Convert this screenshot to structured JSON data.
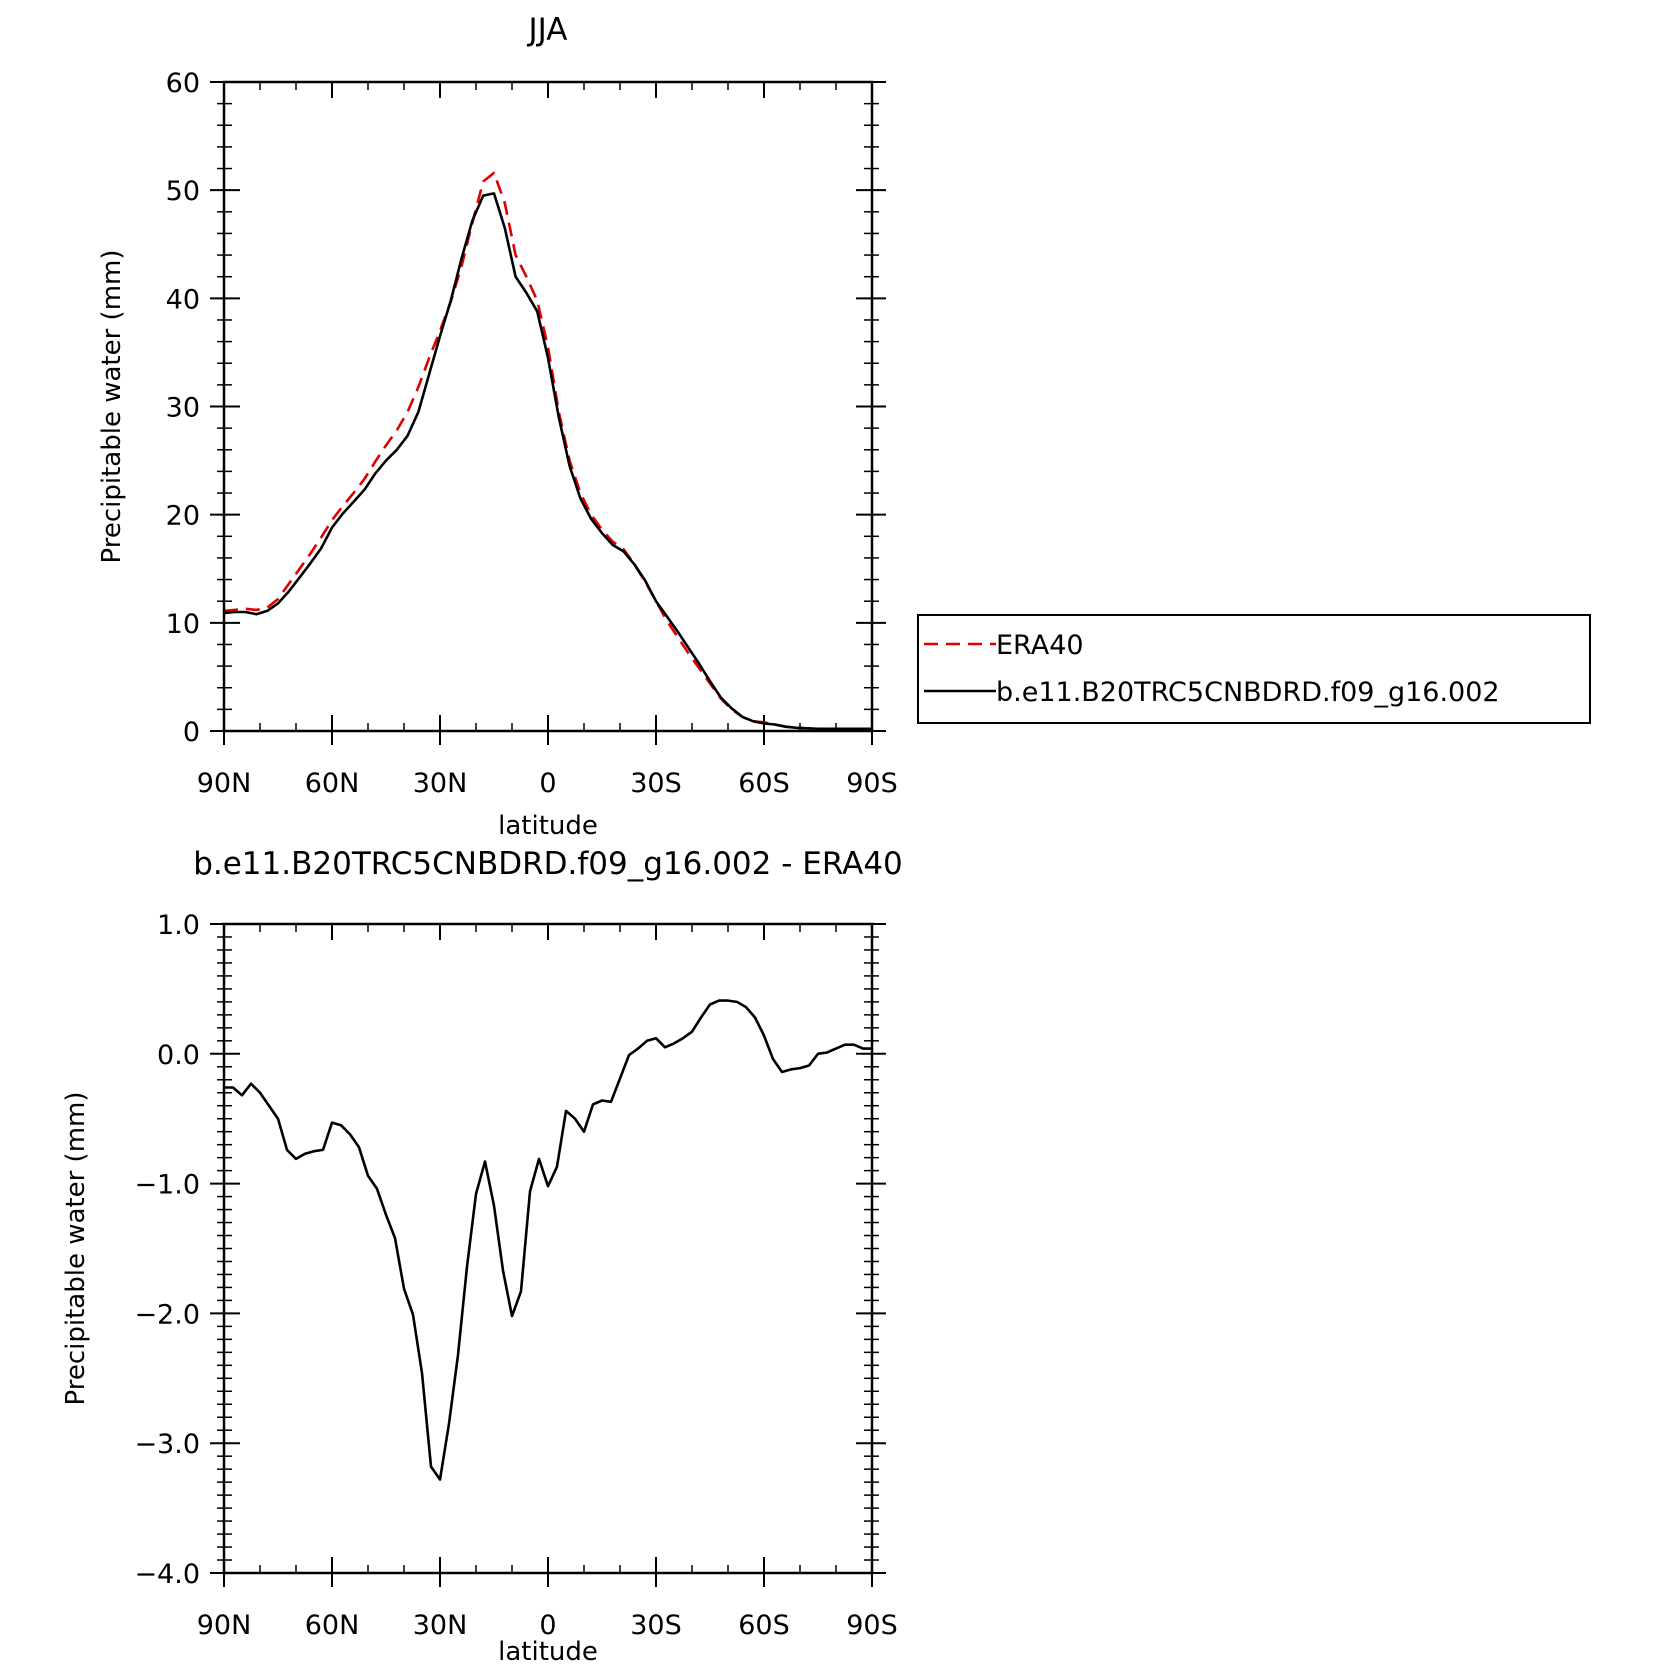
{
  "colors": {
    "model": "#000000",
    "obs": "#e00000",
    "axes": "#000000",
    "background": "#ffffff"
  },
  "chart_data": [
    {
      "type": "line",
      "title": "JJA",
      "xlabel": "latitude",
      "ylabel": "Precipitable water (mm)",
      "xlim": [
        90,
        -90
      ],
      "ylim": [
        0,
        60
      ],
      "x_ticks": [
        90,
        60,
        30,
        0,
        -30,
        -60,
        -90
      ],
      "x_tick_labels": [
        "90N",
        "60N",
        "30N",
        "0",
        "30S",
        "60S",
        "90S"
      ],
      "y_ticks": [
        0,
        10,
        20,
        30,
        40,
        50,
        60
      ],
      "y_tick_labels": [
        "0",
        "10",
        "20",
        "30",
        "40",
        "50",
        "60"
      ],
      "grid": false,
      "legend": {
        "placement": "right",
        "entries": [
          "ERA40",
          "b.e11.B20TRC5CNBDRD.f09_g16.002"
        ]
      },
      "series": [
        {
          "name": "ERA40",
          "style": "dashed",
          "color": "#e00000",
          "x": [
            90,
            87,
            84,
            81,
            78,
            75,
            72,
            69,
            66,
            63,
            60,
            57,
            54,
            51,
            48,
            45,
            42,
            39,
            36,
            33,
            30,
            27,
            24,
            21,
            18,
            15,
            12,
            9,
            6,
            3,
            0,
            -3,
            -6,
            -9,
            -12,
            -15,
            -18,
            -21,
            -24,
            -27,
            -30,
            -33,
            -36,
            -39,
            -42,
            -45,
            -48,
            -51,
            -54,
            -57,
            -60,
            -63,
            -66,
            -69,
            -72,
            -75,
            -78,
            -81,
            -84,
            -87,
            -90
          ],
          "y": [
            11.1,
            11.2,
            11.3,
            11.2,
            11.4,
            12.2,
            13.6,
            15.0,
            16.4,
            17.9,
            19.5,
            20.8,
            22.0,
            23.3,
            24.9,
            26.4,
            27.8,
            29.5,
            31.8,
            34.5,
            37.0,
            39.7,
            43.0,
            47.0,
            50.8,
            51.6,
            48.8,
            44.0,
            42.0,
            39.8,
            35.5,
            29.5,
            25.0,
            22.0,
            20.0,
            18.6,
            17.5,
            16.8,
            15.4,
            13.8,
            12.0,
            10.2,
            8.7,
            7.2,
            5.8,
            4.4,
            3.0,
            2.0,
            1.3,
            0.9,
            0.8,
            0.6,
            0.4,
            0.3,
            0.25,
            0.2,
            0.2,
            0.2,
            0.2,
            0.2,
            0.2
          ]
        },
        {
          "name": "b.e11.B20TRC5CNBDRD.f09_g16.002",
          "style": "solid",
          "color": "#000000",
          "x": [
            90,
            87,
            84,
            81,
            78,
            75,
            72,
            69,
            66,
            63,
            60,
            57,
            54,
            51,
            48,
            45,
            42,
            39,
            36,
            33,
            30,
            27,
            24,
            21,
            18,
            15,
            12,
            9,
            6,
            3,
            0,
            -3,
            -6,
            -9,
            -12,
            -15,
            -18,
            -21,
            -24,
            -27,
            -30,
            -33,
            -36,
            -39,
            -42,
            -45,
            -48,
            -51,
            -54,
            -57,
            -60,
            -63,
            -66,
            -69,
            -72,
            -75,
            -78,
            -81,
            -84,
            -87,
            -90
          ],
          "y": [
            10.9,
            11.0,
            11.0,
            10.8,
            11.1,
            11.8,
            12.9,
            14.2,
            15.5,
            16.9,
            18.8,
            20.1,
            21.2,
            22.3,
            23.8,
            25.0,
            26.0,
            27.3,
            29.5,
            33.0,
            36.5,
            39.8,
            43.7,
            47.2,
            49.5,
            49.7,
            46.5,
            42.0,
            40.5,
            38.8,
            34.5,
            29.0,
            24.5,
            21.5,
            19.6,
            18.3,
            17.2,
            16.6,
            15.4,
            13.9,
            12.0,
            10.6,
            9.2,
            7.7,
            6.2,
            4.6,
            3.1,
            2.1,
            1.3,
            0.9,
            0.7,
            0.6,
            0.4,
            0.3,
            0.25,
            0.2,
            0.2,
            0.2,
            0.2,
            0.2,
            0.2
          ]
        }
      ]
    },
    {
      "type": "line",
      "title": "b.e11.B20TRC5CNBDRD.f09_g16.002 - ERA40",
      "xlabel": "latitude",
      "ylabel": "Precipitable water (mm)",
      "xlim": [
        90,
        -90
      ],
      "ylim": [
        -4.0,
        1.0
      ],
      "x_ticks": [
        90,
        60,
        30,
        0,
        -30,
        -60,
        -90
      ],
      "x_tick_labels": [
        "90N",
        "60N",
        "30N",
        "0",
        "30S",
        "60S",
        "90S"
      ],
      "y_ticks": [
        1.0,
        0.0,
        -1.0,
        -2.0,
        -3.0,
        -4.0
      ],
      "y_tick_labels": [
        "1.0",
        "0.0",
        "−1.0",
        "−2.0",
        "−3.0",
        "−4.0"
      ],
      "grid": false,
      "series": [
        {
          "style": "solid",
          "color": "#000000",
          "x": [
            90,
            87.5,
            85,
            82.5,
            80,
            77.5,
            75,
            72.5,
            70,
            67.5,
            65,
            62.5,
            60,
            57.5,
            55,
            52.5,
            50,
            47.5,
            45,
            42.5,
            40,
            37.5,
            35,
            32.5,
            30,
            27.5,
            25,
            22.5,
            20,
            17.5,
            15,
            12.5,
            10,
            7.5,
            5,
            2.5,
            0,
            -2.5,
            -5,
            -7.5,
            -10,
            -12.5,
            -15,
            -17.5,
            -20,
            -22.5,
            -25,
            -27.5,
            -30,
            -32.5,
            -35,
            -37.5,
            -40,
            -42.5,
            -45,
            -47.5,
            -50,
            -52.5,
            -55,
            -57.5,
            -60,
            -62.5,
            -65,
            -67.5,
            -70,
            -72.5,
            -75,
            -77.5,
            -80,
            -82.5,
            -85,
            -87.5,
            -90
          ],
          "y": [
            -0.26,
            -0.26,
            -0.32,
            -0.23,
            -0.3,
            -0.4,
            -0.5,
            -0.74,
            -0.81,
            -0.77,
            -0.75,
            -0.74,
            -0.53,
            -0.55,
            -0.62,
            -0.72,
            -0.94,
            -1.04,
            -1.24,
            -1.42,
            -1.81,
            -2.01,
            -2.46,
            -3.18,
            -3.28,
            -2.85,
            -2.32,
            -1.64,
            -1.08,
            -0.83,
            -1.17,
            -1.67,
            -2.02,
            -1.83,
            -1.06,
            -0.81,
            -1.02,
            -0.87,
            -0.44,
            -0.5,
            -0.6,
            -0.39,
            -0.36,
            -0.37,
            -0.19,
            -0.01,
            0.04,
            0.1,
            0.12,
            0.05,
            0.08,
            0.12,
            0.17,
            0.28,
            0.38,
            0.41,
            0.41,
            0.4,
            0.36,
            0.28,
            0.14,
            -0.04,
            -0.14,
            -0.12,
            -0.11,
            -0.09,
            0.0,
            0.01,
            0.04,
            0.07,
            0.07,
            0.04,
            0.04
          ]
        }
      ]
    }
  ]
}
